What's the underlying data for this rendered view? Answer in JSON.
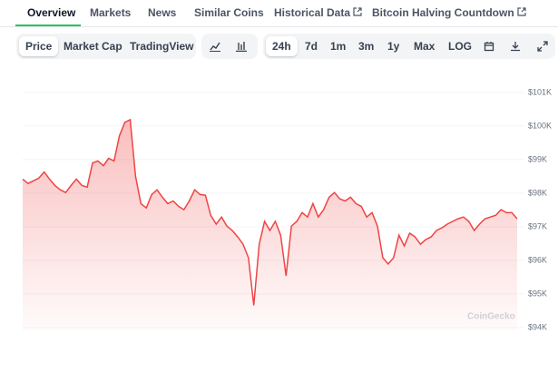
{
  "tabs": [
    "Overview",
    "Markets",
    "News",
    "Similar Coins",
    "Historical Data",
    "Bitcoin Halving Countdown"
  ],
  "view_buttons": [
    "Price",
    "Market Cap",
    "TradingView"
  ],
  "range_buttons": [
    "24h",
    "7d",
    "1m",
    "3m",
    "1y",
    "Max",
    "LOG"
  ],
  "chart_data": {
    "type": "line",
    "color": "#ef4444",
    "watermark": "CoinGecko",
    "values": [
      98.42,
      98.29,
      98.37,
      98.45,
      98.63,
      98.42,
      98.23,
      98.1,
      98.02,
      98.23,
      98.42,
      98.23,
      98.18,
      98.9,
      98.96,
      98.82,
      99.04,
      98.96,
      99.71,
      100.11,
      100.19,
      98.5,
      97.69,
      97.56,
      97.96,
      98.1,
      97.88,
      97.69,
      97.77,
      97.61,
      97.51,
      97.77,
      98.1,
      97.96,
      97.94,
      97.34,
      97.08,
      97.29,
      97.02,
      96.89,
      96.7,
      96.48,
      96.08,
      94.66,
      96.48,
      97.16,
      96.89,
      97.16,
      96.75,
      95.54,
      97.02,
      97.16,
      97.42,
      97.29,
      97.69,
      97.29,
      97.51,
      97.88,
      98.02,
      97.83,
      97.77,
      97.88,
      97.69,
      97.61,
      97.29,
      97.42,
      97.02,
      96.08,
      95.89,
      96.08,
      96.75,
      96.43,
      96.81,
      96.7,
      96.48,
      96.62,
      96.7,
      96.89,
      96.97,
      97.08,
      97.16,
      97.24,
      97.29,
      97.16,
      96.89,
      97.08,
      97.24,
      97.29,
      97.34,
      97.51,
      97.42,
      97.42,
      97.24
    ],
    "ylim": [
      93.9,
      101.5
    ],
    "yticks": [
      {
        "value": 94,
        "label": "$94K"
      },
      {
        "value": 95,
        "label": "$95K"
      },
      {
        "value": 96,
        "label": "$96K"
      },
      {
        "value": 97,
        "label": "$97K"
      },
      {
        "value": 98,
        "label": "$98K"
      },
      {
        "value": 99,
        "label": "$99K"
      },
      {
        "value": 100,
        "label": "$100K"
      },
      {
        "value": 101,
        "label": "$101K"
      }
    ],
    "grid": true
  }
}
